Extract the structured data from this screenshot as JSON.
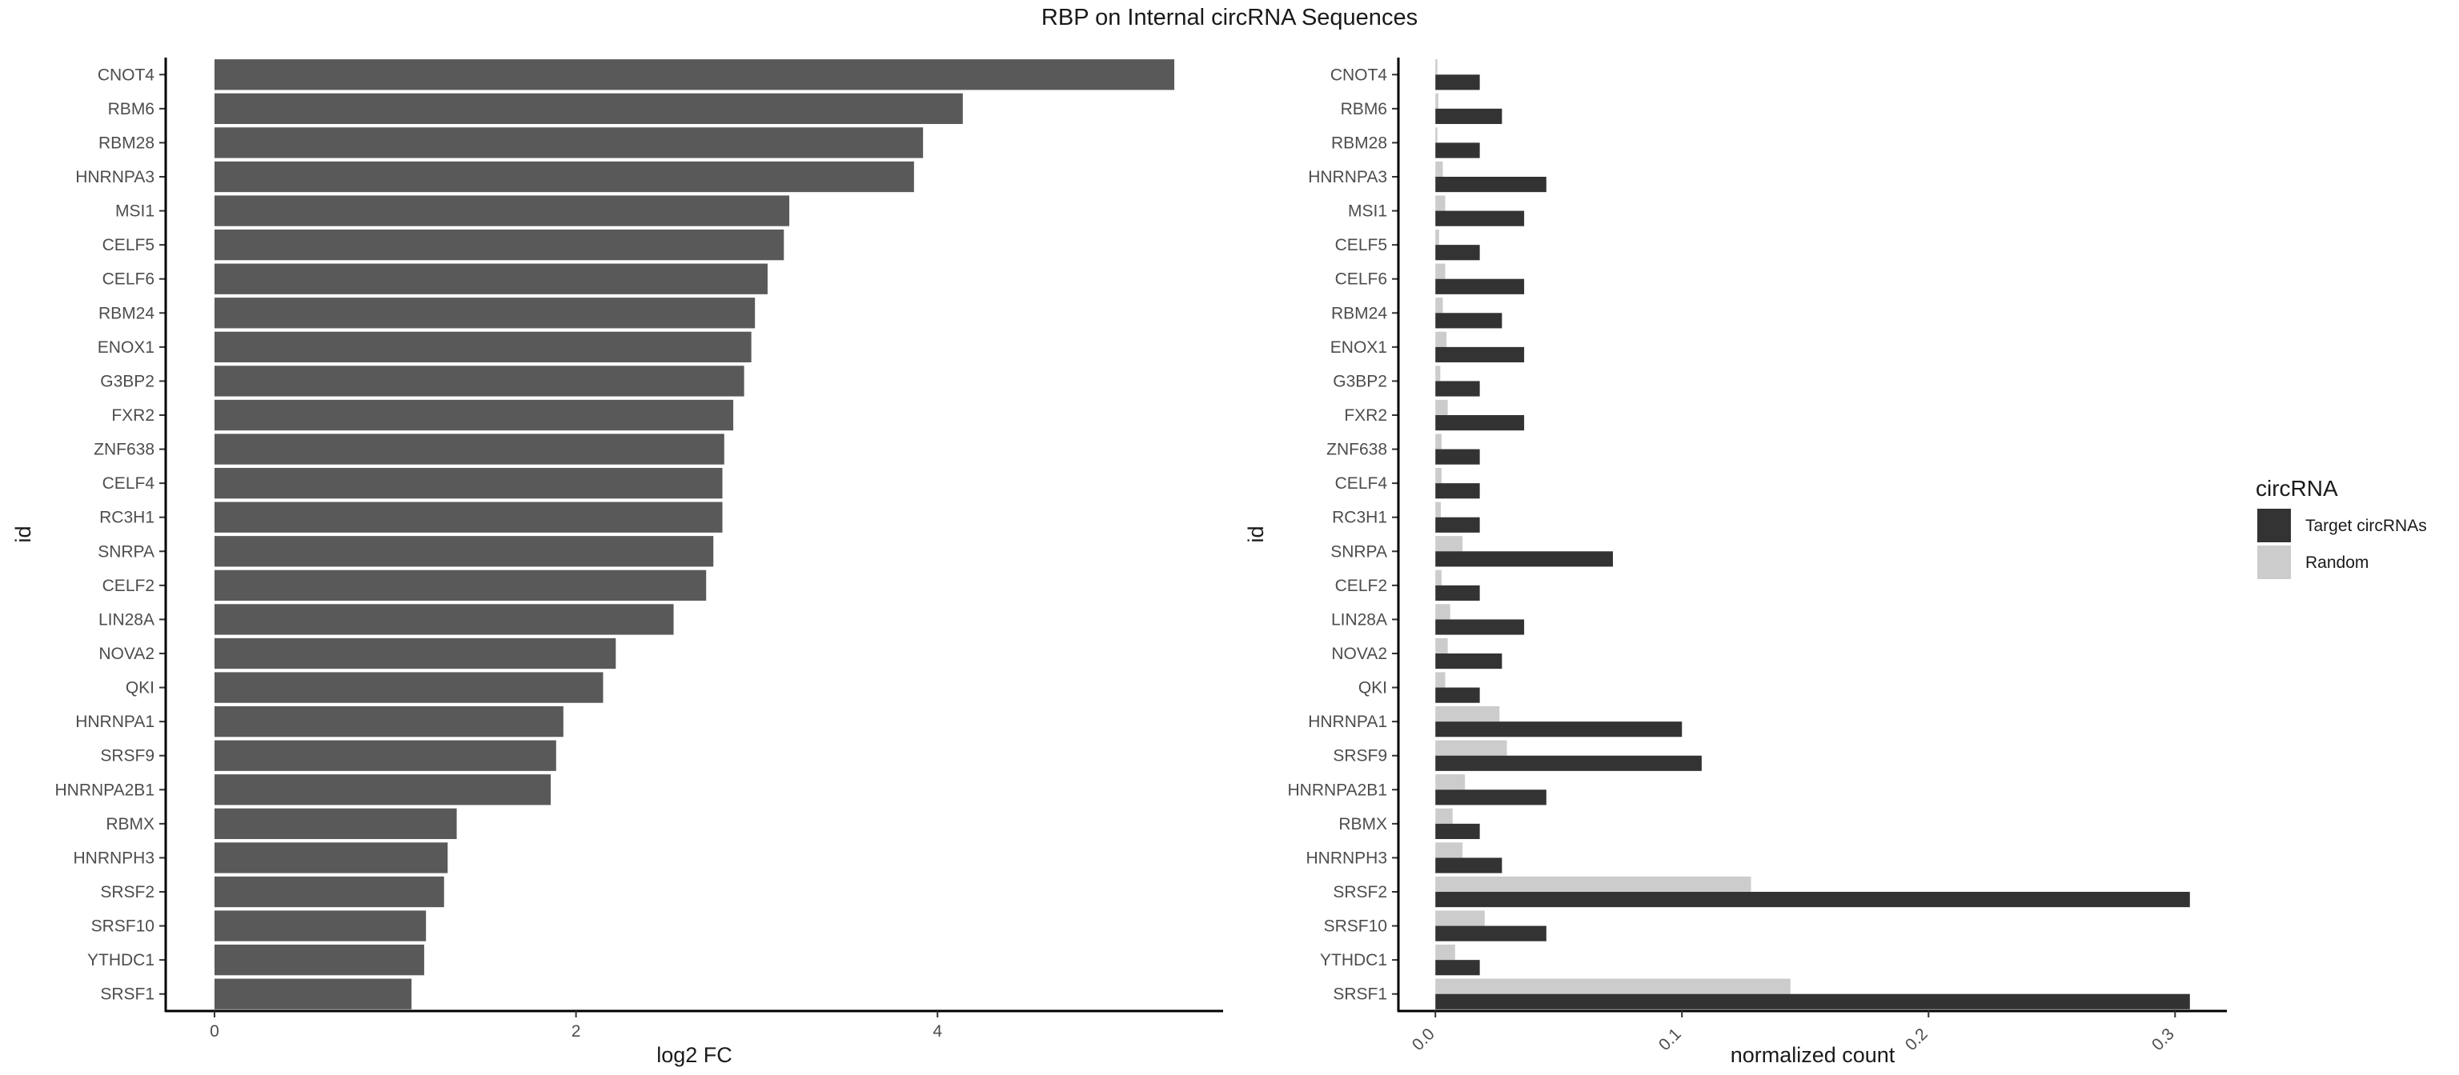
{
  "title": "RBP on Internal circRNA Sequences",
  "chart_data": [
    {
      "type": "bar",
      "orientation": "horizontal",
      "categories": [
        "CNOT4",
        "RBM6",
        "RBM28",
        "HNRNPA3",
        "MSI1",
        "CELF5",
        "CELF6",
        "RBM24",
        "ENOX1",
        "G3BP2",
        "FXR2",
        "ZNF638",
        "CELF4",
        "RC3H1",
        "SNRPA",
        "CELF2",
        "LIN28A",
        "NOVA2",
        "QKI",
        "HNRNPA1",
        "SRSF9",
        "HNRNPA2B1",
        "RBMX",
        "HNRNPH3",
        "SRSF2",
        "SRSF10",
        "YTHDC1",
        "SRSF1"
      ],
      "values": [
        5.31,
        4.14,
        3.92,
        3.87,
        3.18,
        3.15,
        3.06,
        2.99,
        2.97,
        2.93,
        2.87,
        2.82,
        2.81,
        2.81,
        2.76,
        2.72,
        2.54,
        2.22,
        2.15,
        1.93,
        1.89,
        1.86,
        1.34,
        1.29,
        1.27,
        1.17,
        1.16,
        1.09
      ],
      "xlabel": "log2 FC",
      "ylabel": "id",
      "xticks": [
        0,
        2,
        4
      ],
      "xlim": [
        -0.27,
        5.58
      ],
      "bar_color": "#595959",
      "grid": false
    },
    {
      "type": "bar",
      "orientation": "horizontal",
      "categories": [
        "CNOT4",
        "RBM6",
        "RBM28",
        "HNRNPA3",
        "MSI1",
        "CELF5",
        "CELF6",
        "RBM24",
        "ENOX1",
        "G3BP2",
        "FXR2",
        "ZNF638",
        "CELF4",
        "RC3H1",
        "SNRPA",
        "CELF2",
        "LIN28A",
        "NOVA2",
        "QKI",
        "HNRNPA1",
        "SRSF9",
        "HNRNPA2B1",
        "RBMX",
        "HNRNPH3",
        "SRSF2",
        "SRSF10",
        "YTHDC1",
        "SRSF1"
      ],
      "series": [
        {
          "name": "Target circRNAs",
          "color": "#333333",
          "values": [
            0.018,
            0.027,
            0.018,
            0.045,
            0.036,
            0.018,
            0.036,
            0.027,
            0.036,
            0.018,
            0.036,
            0.018,
            0.018,
            0.018,
            0.072,
            0.018,
            0.036,
            0.027,
            0.018,
            0.1,
            0.108,
            0.045,
            0.018,
            0.027,
            0.306,
            0.045,
            0.018,
            0.306
          ]
        },
        {
          "name": "Random",
          "color": "#cccccc",
          "values": [
            0.0008,
            0.0012,
            0.0008,
            0.003,
            0.004,
            0.0015,
            0.004,
            0.003,
            0.0045,
            0.002,
            0.005,
            0.0025,
            0.0025,
            0.0022,
            0.011,
            0.0025,
            0.006,
            0.005,
            0.004,
            0.026,
            0.029,
            0.012,
            0.007,
            0.011,
            0.128,
            0.02,
            0.008,
            0.144
          ]
        }
      ],
      "xlabel": "normalized count",
      "ylabel": "id",
      "xticks": [
        0.0,
        0.1,
        0.2,
        0.3
      ],
      "xtick_labels": [
        "0.0",
        "0.1",
        "0.2",
        "0.3"
      ],
      "xlim": [
        -0.015,
        0.321
      ],
      "legend": {
        "title": "circRNA",
        "position": "right"
      },
      "grid": false
    }
  ]
}
